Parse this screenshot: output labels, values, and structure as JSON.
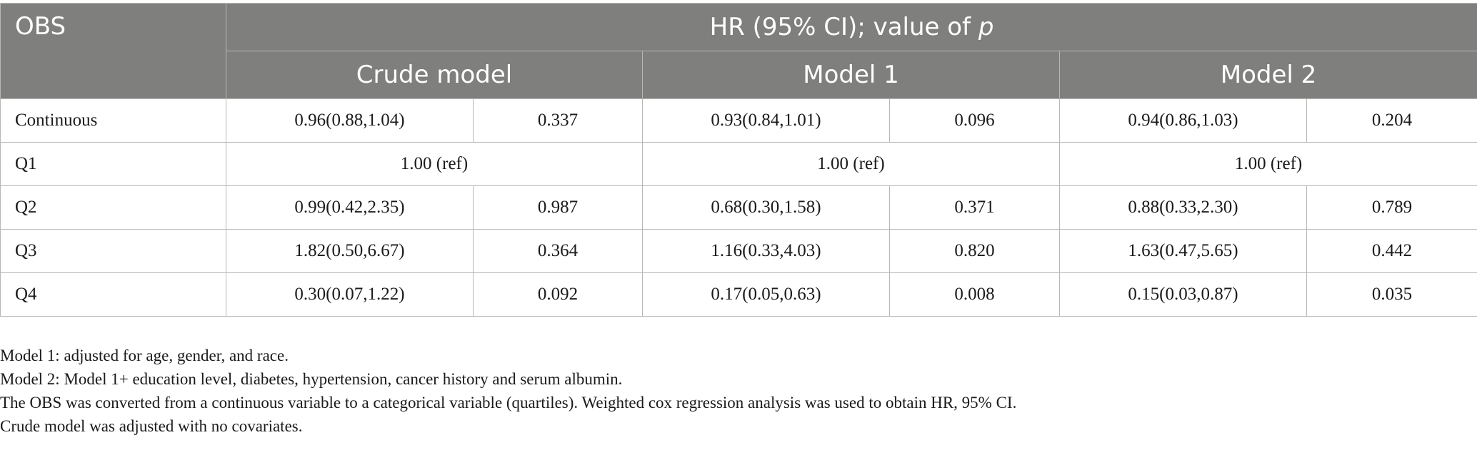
{
  "table": {
    "header": {
      "stub": "OBS",
      "group_label_prefix": "HR (95% CI); value of ",
      "group_label_italic": "p",
      "models": [
        "Crude model",
        "Model 1",
        "Model 2"
      ]
    },
    "rows": [
      {
        "label": "Continuous",
        "crude": {
          "hr": "0.96(0.88,1.04)",
          "p": "0.337"
        },
        "model1": {
          "hr": "0.93(0.84,1.01)",
          "p": "0.096"
        },
        "model2": {
          "hr": "0.94(0.86,1.03)",
          "p": "0.204"
        }
      },
      {
        "label": "Q1",
        "crude": {
          "ref": "1.00 (ref)"
        },
        "model1": {
          "ref": "1.00 (ref)"
        },
        "model2": {
          "ref": "1.00 (ref)"
        }
      },
      {
        "label": "Q2",
        "crude": {
          "hr": "0.99(0.42,2.35)",
          "p": "0.987"
        },
        "model1": {
          "hr": "0.68(0.30,1.58)",
          "p": "0.371"
        },
        "model2": {
          "hr": "0.88(0.33,2.30)",
          "p": "0.789"
        }
      },
      {
        "label": "Q3",
        "crude": {
          "hr": "1.82(0.50,6.67)",
          "p": "0.364"
        },
        "model1": {
          "hr": "1.16(0.33,4.03)",
          "p": "0.820"
        },
        "model2": {
          "hr": "1.63(0.47,5.65)",
          "p": "0.442"
        }
      },
      {
        "label": "Q4",
        "crude": {
          "hr": "0.30(0.07,1.22)",
          "p": "0.092"
        },
        "model1": {
          "hr": "0.17(0.05,0.63)",
          "p": "0.008"
        },
        "model2": {
          "hr": "0.15(0.03,0.87)",
          "p": "0.035"
        }
      }
    ]
  },
  "footnotes": [
    "Model 1: adjusted for age, gender, and race.",
    "Model 2: Model 1+ education level, diabetes, hypertension, cancer history and serum albumin.",
    "The OBS was converted from a continuous variable to a categorical variable (quartiles). Weighted cox regression analysis was used to obtain HR, 95% CI.",
    "Crude model was adjusted with no covariates."
  ],
  "colors": {
    "header_background": "#7f7f7e",
    "header_text": "#ffffff",
    "grid_line": "#b7b7b6",
    "body_text": "#1a1a1a"
  }
}
